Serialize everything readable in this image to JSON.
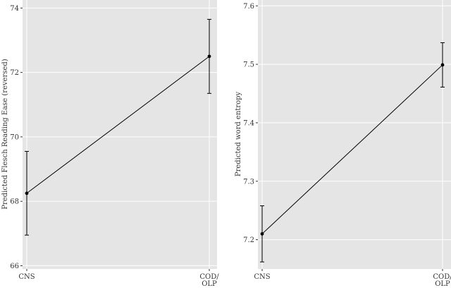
{
  "chart_data": [
    {
      "type": "line",
      "categories": [
        "CNS",
        "COD/\nOLP"
      ],
      "series": [
        {
          "values": [
            68.25,
            72.5
          ],
          "lower": [
            66.95,
            71.35
          ],
          "upper": [
            69.55,
            73.65
          ]
        }
      ],
      "xlabel": "",
      "ylabel": "Predicted Flesch Reading Ease (reversed)",
      "ylim": [
        65.9,
        74.25
      ],
      "yticks": [
        66,
        68,
        70,
        72,
        74
      ],
      "yticklabels": [
        "66",
        "68",
        "70",
        "72",
        "74"
      ],
      "error_bars": true,
      "grid": true,
      "colors": {
        "panel_background": "#e5e5e5",
        "grid": "#ffffff",
        "line": "#000000",
        "point": "#000000"
      }
    },
    {
      "type": "line",
      "categories": [
        "CNS",
        "COD/\nOLP"
      ],
      "series": [
        {
          "values": [
            7.21,
            7.499
          ],
          "lower": [
            7.162,
            7.461
          ],
          "upper": [
            7.258,
            7.537
          ]
        }
      ],
      "xlabel": "",
      "ylabel": "Predicted word entropy",
      "ylim": [
        7.15,
        7.61
      ],
      "yticks": [
        7.2,
        7.3,
        7.4,
        7.5,
        7.6
      ],
      "yticklabels": [
        "7.2",
        "7.3",
        "7.4",
        "7.5",
        "7.6"
      ],
      "error_bars": true,
      "grid": true,
      "colors": {
        "panel_background": "#e5e5e5",
        "grid": "#ffffff",
        "line": "#000000",
        "point": "#000000"
      }
    }
  ]
}
